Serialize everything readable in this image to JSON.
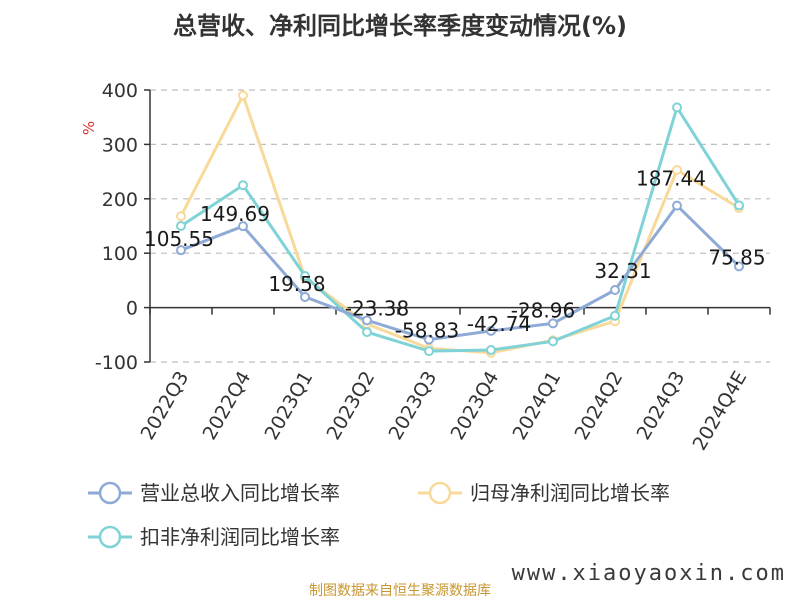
{
  "chart_data": {
    "type": "line",
    "title": "总营收、净利同比增长率季度变动情况(%)",
    "ylabel": "%",
    "ylim": [
      -100,
      400
    ],
    "yticks": [
      400,
      300,
      200,
      100,
      0,
      -100
    ],
    "categories": [
      "2022Q3",
      "2022Q4",
      "2023Q1",
      "2023Q2",
      "2023Q3",
      "2023Q4",
      "2024Q1",
      "2024Q2",
      "2024Q3",
      "2024Q4E"
    ],
    "grid": true,
    "legend_position": "bottom",
    "series": [
      {
        "name": "营业总收入同比增长率",
        "color": "#8eaad6",
        "values": [
          105.55,
          149.69,
          19.58,
          -23.38,
          -58.83,
          -42.74,
          -28.96,
          32.31,
          187.44,
          75.85
        ],
        "labels": [
          "105.55",
          "149.69",
          "19.58",
          "-23.38",
          "-58.83",
          "-42.74",
          "-28.96",
          "32.31",
          "187.44",
          "75.85"
        ]
      },
      {
        "name": "归母净利润同比增长率",
        "color": "#f9d99a",
        "values": [
          168,
          390,
          55,
          -30,
          -75,
          -83,
          -60,
          -25,
          253,
          183
        ]
      },
      {
        "name": "扣非净利润同比增长率",
        "color": "#7fd3d6",
        "values": [
          150,
          225,
          58,
          -45,
          -80,
          -78,
          -62,
          -15,
          368,
          188
        ]
      }
    ]
  },
  "footer": "制图数据来自恒生聚源数据库",
  "watermark": "www.xiaoyaoxin.com"
}
